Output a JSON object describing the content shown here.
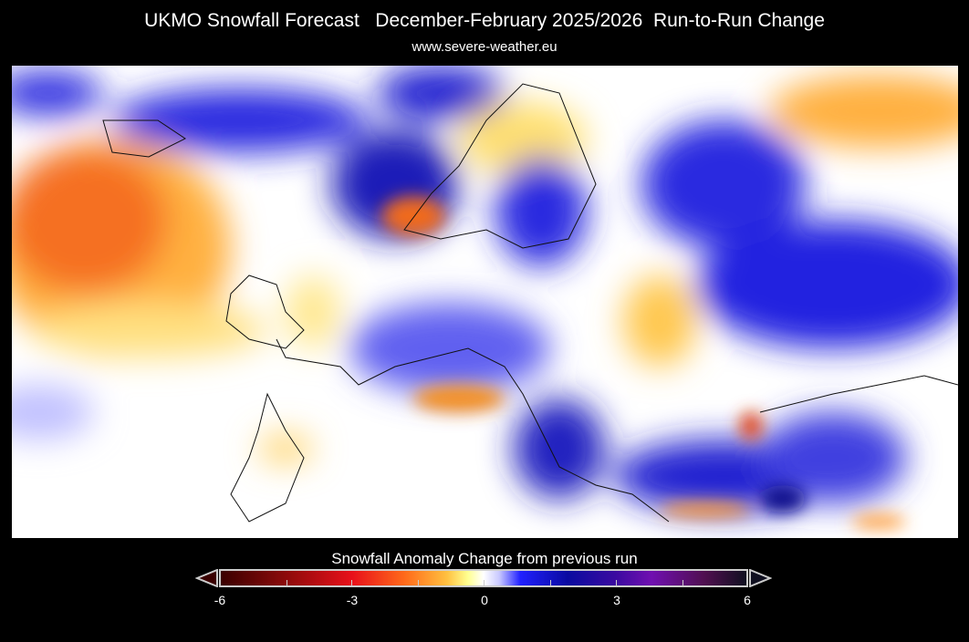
{
  "header": {
    "title": "UKMO Snowfall Forecast   December-February 2025/2026  Run-to-Run Change",
    "source": "www.severe-weather.eu"
  },
  "map": {
    "region": "Europe",
    "variable": "Snowfall anomaly change"
  },
  "colorbar": {
    "title": "Snowfall Anomaly Change from previous run",
    "ticks": [
      "-6",
      "-3",
      "0",
      "3",
      "6"
    ],
    "min": -6,
    "max": 6,
    "colors": {
      "neg_extreme": "#3a0000",
      "neg": "#e8101a",
      "neg_small": "#ffc040",
      "zero": "#ffffff",
      "pos_small": "#2020ff",
      "pos": "#0a0aa0",
      "pos_extreme": "#101020"
    }
  }
}
